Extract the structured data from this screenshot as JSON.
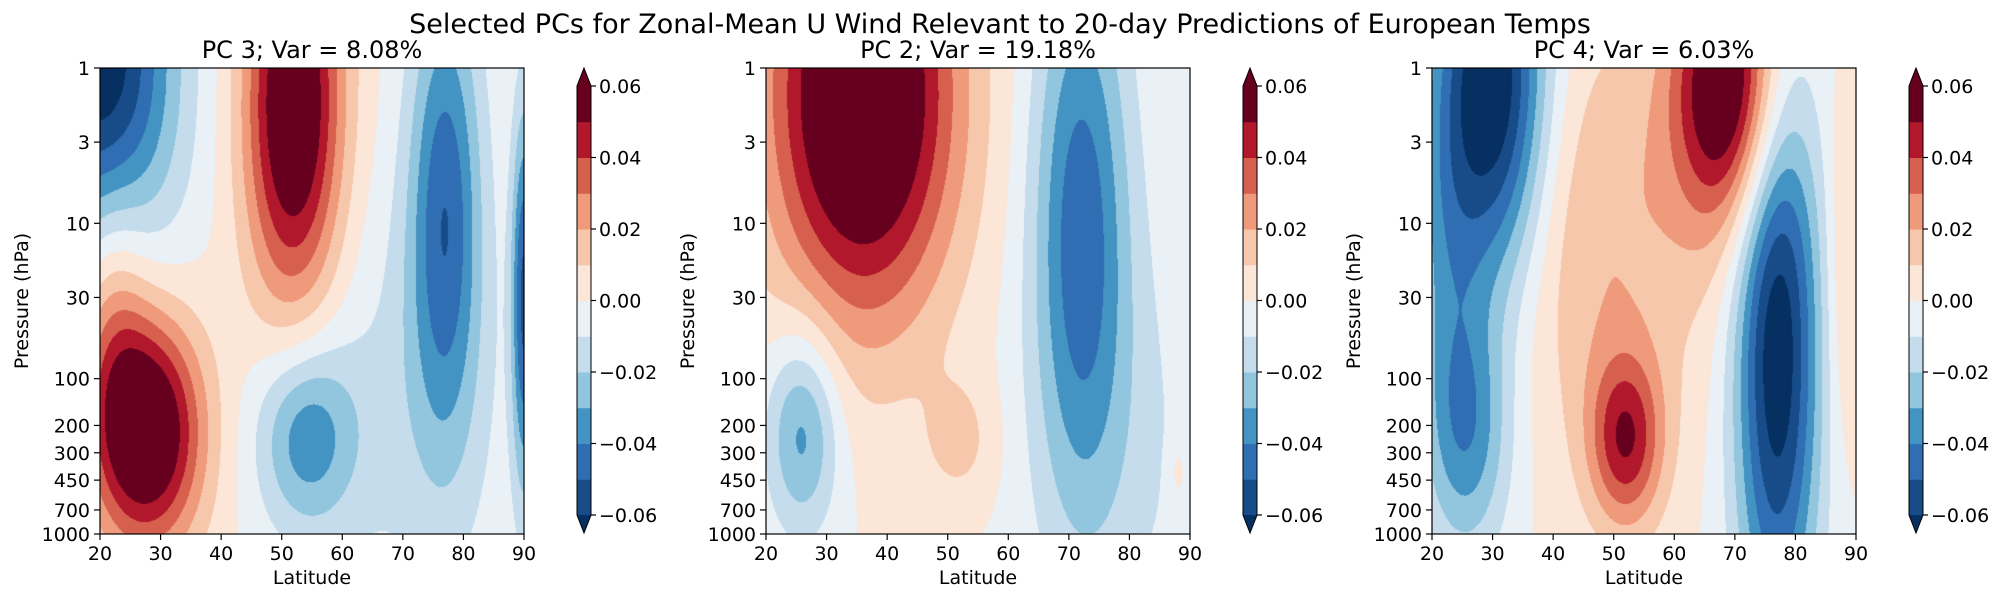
{
  "figure": {
    "title": "Selected PCs for Zonal-Mean U Wind Relevant to 20-day Predictions of European Temps"
  },
  "chart_data": [
    {
      "type": "heatmap",
      "title": "PC 3; Var = 8.08%",
      "xlabel": "Latitude",
      "ylabel": "Pressure (hPa)",
      "x_ticks": [
        "20",
        "30",
        "40",
        "50",
        "60",
        "70",
        "80",
        "90"
      ],
      "y_ticks": [
        "1",
        "3",
        "10",
        "30",
        "100",
        "200",
        "300",
        "450",
        "700",
        "1000"
      ],
      "x_range": [
        20,
        90
      ],
      "y_range": [
        1000,
        1
      ],
      "y_scale": "log",
      "grid": false,
      "colorbar": {
        "levels": [
          -0.06,
          -0.05,
          -0.04,
          -0.03,
          -0.02,
          -0.01,
          0.0,
          0.01,
          0.02,
          0.03,
          0.04,
          0.05,
          0.06
        ],
        "tick_labels": [
          "−0.06",
          "−0.04",
          "−0.02",
          "0.00",
          "0.02",
          "0.04",
          "0.06"
        ],
        "extend": "both"
      },
      "features": [
        {
          "lat": 20,
          "p": 1,
          "value": -0.07,
          "rx": 12,
          "ry": 1.2
        },
        {
          "lat": 52,
          "p": 1.8,
          "value": 0.07,
          "rx": 8,
          "ry": 1.3
        },
        {
          "lat": 28,
          "p": 220,
          "value": 0.07,
          "rx": 9,
          "ry": 0.75
        },
        {
          "lat": 77,
          "p": 8,
          "value": -0.045,
          "rx": 6,
          "ry": 1.5
        },
        {
          "lat": 54,
          "p": 230,
          "value": -0.035,
          "rx": 8,
          "ry": 0.6
        },
        {
          "lat": 22,
          "p": 40,
          "value": 0.025,
          "rx": 6,
          "ry": 1.0
        },
        {
          "lat": 70,
          "p": 150,
          "value": -0.012,
          "rx": 18,
          "ry": 1.5
        },
        {
          "lat": 90,
          "p": 30,
          "value": -0.05,
          "rx": 2,
          "ry": 1.2
        }
      ]
    },
    {
      "type": "heatmap",
      "title": "PC 2; Var = 19.18%",
      "xlabel": "Latitude",
      "ylabel": "Pressure (hPa)",
      "x_ticks": [
        "20",
        "30",
        "40",
        "50",
        "60",
        "70",
        "80",
        "90"
      ],
      "y_ticks": [
        "1",
        "3",
        "10",
        "30",
        "100",
        "200",
        "300",
        "450",
        "700",
        "1000"
      ],
      "x_range": [
        20,
        90
      ],
      "y_range": [
        1000,
        1
      ],
      "y_scale": "log",
      "grid": false,
      "colorbar": {
        "levels": [
          -0.06,
          -0.05,
          -0.04,
          -0.03,
          -0.02,
          -0.01,
          0.0,
          0.01,
          0.02,
          0.03,
          0.04,
          0.05,
          0.06
        ],
        "tick_labels": [
          "−0.06",
          "−0.04",
          "−0.02",
          "0.00",
          "0.02",
          "0.04",
          "0.06"
        ],
        "extend": "both"
      },
      "features": [
        {
          "lat": 36,
          "p": 1.5,
          "value": 0.08,
          "rx": 15,
          "ry": 1.4
        },
        {
          "lat": 72,
          "p": 10,
          "value": -0.045,
          "rx": 8,
          "ry": 1.8
        },
        {
          "lat": 26,
          "p": 220,
          "value": -0.035,
          "rx": 6,
          "ry": 0.65
        },
        {
          "lat": 52,
          "p": 250,
          "value": 0.013,
          "rx": 6,
          "ry": 0.4
        },
        {
          "lat": 80,
          "p": 300,
          "value": -0.01,
          "rx": 16,
          "ry": 1.5
        },
        {
          "lat": 88,
          "p": 400,
          "value": 0.01,
          "rx": 1.5,
          "ry": 0.2
        }
      ]
    },
    {
      "type": "heatmap",
      "title": "PC 4; Var = 6.03%",
      "xlabel": "Latitude",
      "ylabel": "Pressure (hPa)",
      "x_ticks": [
        "20",
        "30",
        "40",
        "50",
        "60",
        "70",
        "80",
        "90"
      ],
      "y_ticks": [
        "1",
        "3",
        "10",
        "30",
        "100",
        "200",
        "300",
        "450",
        "700",
        "1000"
      ],
      "x_range": [
        20,
        90
      ],
      "y_range": [
        1000,
        1
      ],
      "y_scale": "log",
      "grid": false,
      "colorbar": {
        "levels": [
          -0.06,
          -0.05,
          -0.04,
          -0.03,
          -0.02,
          -0.01,
          0.0,
          0.01,
          0.02,
          0.03,
          0.04,
          0.05,
          0.06
        ],
        "tick_labels": [
          "−0.06",
          "−0.04",
          "−0.02",
          "0.00",
          "0.02",
          "0.04",
          "0.06"
        ],
        "extend": "both"
      },
      "features": [
        {
          "lat": 30,
          "p": 1.3,
          "value": -0.075,
          "rx": 9,
          "ry": 1.3
        },
        {
          "lat": 69,
          "p": 1.3,
          "value": 0.07,
          "rx": 9,
          "ry": 0.9
        },
        {
          "lat": 77,
          "p": 60,
          "value": -0.07,
          "rx": 7,
          "ry": 1.9
        },
        {
          "lat": 26,
          "p": 220,
          "value": -0.035,
          "rx": 7,
          "ry": 0.8
        },
        {
          "lat": 52,
          "p": 250,
          "value": 0.045,
          "rx": 6,
          "ry": 0.55
        },
        {
          "lat": 48,
          "p": 12,
          "value": 0.02,
          "rx": 18,
          "ry": 1.4
        },
        {
          "lat": 88,
          "p": 20,
          "value": 0.012,
          "rx": 3,
          "ry": 1.2
        },
        {
          "lat": 22,
          "p": 15,
          "value": -0.02,
          "rx": 6,
          "ry": 1.3
        }
      ]
    }
  ]
}
